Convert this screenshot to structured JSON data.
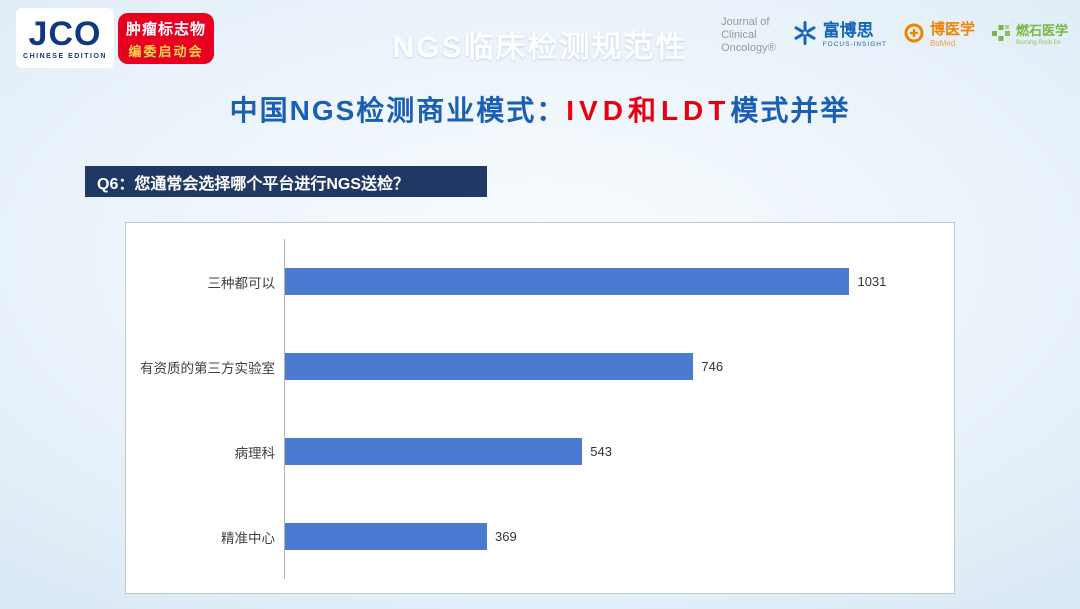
{
  "header": {
    "jco_logo": {
      "main": "JCO",
      "sub": "CHINESE EDITION"
    },
    "badge": {
      "line1": "肿瘤标志物",
      "line2": "编委启动会"
    },
    "title": "NGS临床检测规范性",
    "journal": {
      "line1": "Journal of",
      "line2": "Clinical",
      "line3": "Oncology®"
    },
    "focus_insight": {
      "name": "富博思",
      "sub": "FOCUS-INSIGHT"
    },
    "bomed": {
      "name": "博医学",
      "sub": "BoMed"
    },
    "burning_rock": {
      "name": "燃石医学",
      "sub": "Burning Rock Dx"
    }
  },
  "subtitle": {
    "prefix": "中国NGS检测商业模式：",
    "highlight": "IVD和LDT",
    "suffix": "模式并举"
  },
  "question": {
    "label": "Q6：",
    "text": "您通常会选择哪个平台进行NGS送检？"
  },
  "chart_data": {
    "type": "bar",
    "orientation": "horizontal",
    "title": "",
    "categories": [
      "三种都可以",
      "有资质的第三方实验室",
      "病理科",
      "精准中心"
    ],
    "values": [
      1031,
      746,
      543,
      369
    ],
    "value_labels": [
      "1031",
      "746",
      "543",
      "369"
    ],
    "xlim": [
      0,
      1200
    ],
    "grid": false,
    "legend": false,
    "bar_color": "#4b7bd0"
  },
  "colors": {
    "accent_red": "#e60012",
    "title_blue": "#1a5fb4",
    "question_navy": "#1f3864",
    "bar_blue": "#4b7bd0",
    "badge_red": "#e80021",
    "badge_gold": "#ffd44d"
  }
}
